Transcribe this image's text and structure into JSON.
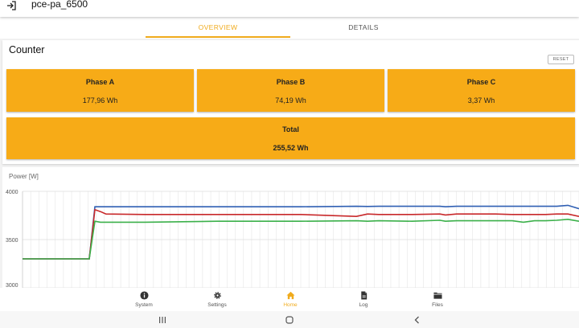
{
  "header": {
    "title": "pce-pa_6500",
    "back_icon": "logout-icon"
  },
  "tabs": [
    {
      "label": "OVERVIEW",
      "active": true
    },
    {
      "label": "DETAILS",
      "active": false
    }
  ],
  "counter": {
    "title": "Counter",
    "reset_label": "RESET",
    "phases": [
      {
        "label": "Phase A",
        "value": "177,96 Wh"
      },
      {
        "label": "Phase B",
        "value": "74,19 Wh"
      },
      {
        "label": "Phase C",
        "value": "3,37 Wh"
      }
    ],
    "total": {
      "label": "Total",
      "value": "255,52 Wh"
    },
    "tile_color": "#f7ab17"
  },
  "chart_data": {
    "type": "line",
    "title": "",
    "ylabel": "Power [W]",
    "xlabel": "",
    "ylim": [
      3300,
      4000
    ],
    "yticks": [
      "4000",
      "3500",
      "3000"
    ],
    "grid": true,
    "x": [
      0,
      0.02,
      0.04,
      0.06,
      0.08,
      0.1,
      0.12,
      0.13,
      0.14,
      0.15,
      0.22,
      0.35,
      0.5,
      0.6,
      0.62,
      0.64,
      0.7,
      0.75,
      0.76,
      0.78,
      0.85,
      0.88,
      0.9,
      0.92,
      0.94,
      0.96,
      0.98,
      1.0
    ],
    "series": [
      {
        "color": "#2f5fb3",
        "values": [
          3300,
          3300,
          3300,
          3300,
          3300,
          3300,
          3300,
          3840,
          3840,
          3840,
          3840,
          3840,
          3840,
          3845,
          3843,
          3845,
          3845,
          3845,
          3840,
          3845,
          3845,
          3845,
          3845,
          3845,
          3845,
          3845,
          3855,
          3820
        ]
      },
      {
        "color": "#c8282a",
        "values": [
          3300,
          3300,
          3300,
          3300,
          3300,
          3300,
          3300,
          3810,
          3790,
          3765,
          3760,
          3760,
          3760,
          3740,
          3765,
          3760,
          3760,
          3765,
          3755,
          3765,
          3765,
          3760,
          3760,
          3760,
          3760,
          3765,
          3765,
          3740
        ]
      },
      {
        "color": "#3bb04a",
        "values": [
          3300,
          3300,
          3300,
          3300,
          3300,
          3300,
          3300,
          3690,
          3680,
          3680,
          3680,
          3690,
          3690,
          3695,
          3690,
          3695,
          3690,
          3700,
          3690,
          3695,
          3695,
          3695,
          3680,
          3695,
          3695,
          3700,
          3710,
          3690
        ]
      }
    ]
  },
  "bottom_nav": [
    {
      "label": "System",
      "icon": "info-icon",
      "active": false
    },
    {
      "label": "Settings",
      "icon": "gear-icon",
      "active": false
    },
    {
      "label": "Home",
      "icon": "home-icon",
      "active": true
    },
    {
      "label": "Log",
      "icon": "document-icon",
      "active": false
    },
    {
      "label": "Files",
      "icon": "folder-icon",
      "active": false
    }
  ],
  "colors": {
    "accent": "#f0ab1d"
  }
}
